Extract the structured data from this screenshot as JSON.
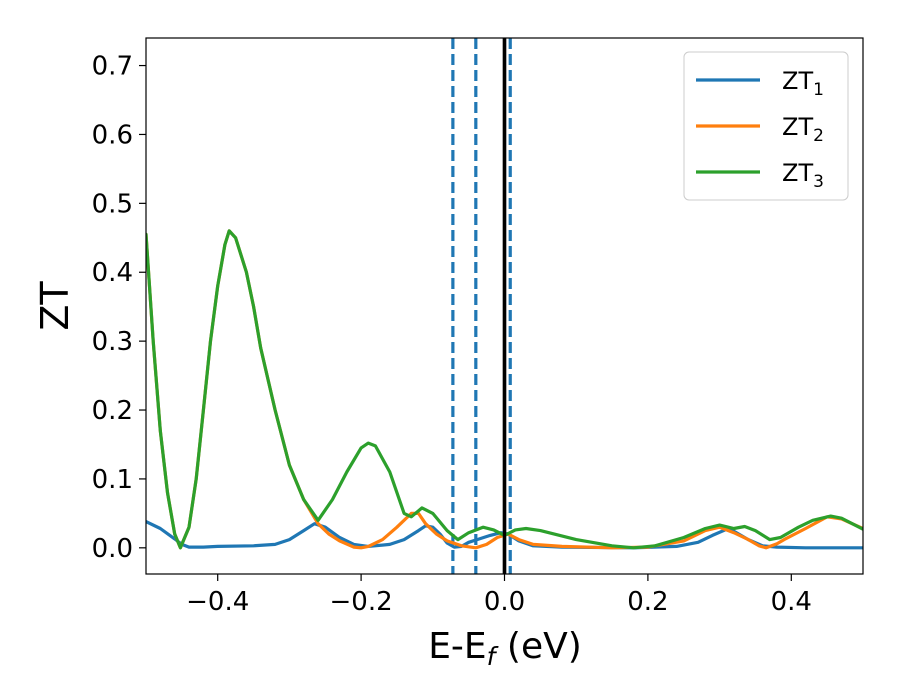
{
  "chart_data": {
    "type": "line",
    "xlabel_main": "E-E",
    "xlabel_sub": "f",
    "xlabel_unit": " (eV)",
    "ylabel": "ZT",
    "xlim": [
      -0.5,
      0.5
    ],
    "ylim": [
      -0.038,
      0.74
    ],
    "xticks": [
      -0.4,
      -0.2,
      0.0,
      0.2,
      0.4
    ],
    "xtick_labels": [
      "−0.4",
      "−0.2",
      "0.0",
      "0.2",
      "0.4"
    ],
    "yticks": [
      0.0,
      0.1,
      0.2,
      0.3,
      0.4,
      0.5,
      0.6,
      0.7
    ],
    "ytick_labels": [
      "0.0",
      "0.1",
      "0.2",
      "0.3",
      "0.4",
      "0.5",
      "0.6",
      "0.7"
    ],
    "legend_position": "top-right",
    "vlines": [
      {
        "x": -0.072,
        "style": "dashed",
        "color": "#1f77b4"
      },
      {
        "x": -0.04,
        "style": "dashed",
        "color": "#1f77b4"
      },
      {
        "x": 0.008,
        "style": "dashed",
        "color": "#1f77b4"
      },
      {
        "x": 0.0,
        "style": "solid",
        "color": "#000000"
      }
    ],
    "series": [
      {
        "name": "ZT",
        "sub": "1",
        "color": "#1f77b4",
        "points": [
          [
            -0.5,
            0.038
          ],
          [
            -0.48,
            0.028
          ],
          [
            -0.46,
            0.013
          ],
          [
            -0.45,
            0.005
          ],
          [
            -0.44,
            0.001
          ],
          [
            -0.42,
            0.001
          ],
          [
            -0.4,
            0.002
          ],
          [
            -0.35,
            0.003
          ],
          [
            -0.32,
            0.005
          ],
          [
            -0.3,
            0.012
          ],
          [
            -0.28,
            0.025
          ],
          [
            -0.265,
            0.035
          ],
          [
            -0.25,
            0.03
          ],
          [
            -0.23,
            0.015
          ],
          [
            -0.21,
            0.005
          ],
          [
            -0.19,
            0.002
          ],
          [
            -0.16,
            0.005
          ],
          [
            -0.14,
            0.012
          ],
          [
            -0.12,
            0.025
          ],
          [
            -0.11,
            0.032
          ],
          [
            -0.1,
            0.03
          ],
          [
            -0.09,
            0.02
          ],
          [
            -0.08,
            0.007
          ],
          [
            -0.07,
            0.001
          ],
          [
            -0.06,
            0.002
          ],
          [
            -0.05,
            0.008
          ],
          [
            -0.035,
            0.013
          ],
          [
            -0.02,
            0.018
          ],
          [
            -0.005,
            0.022
          ],
          [
            0.005,
            0.02
          ],
          [
            0.02,
            0.01
          ],
          [
            0.04,
            0.003
          ],
          [
            0.08,
            0.001
          ],
          [
            0.18,
            0.0
          ],
          [
            0.24,
            0.002
          ],
          [
            0.27,
            0.008
          ],
          [
            0.29,
            0.018
          ],
          [
            0.31,
            0.027
          ],
          [
            0.32,
            0.024
          ],
          [
            0.34,
            0.012
          ],
          [
            0.36,
            0.003
          ],
          [
            0.38,
            0.001
          ],
          [
            0.42,
            0.0
          ],
          [
            0.5,
            0.0
          ]
        ]
      },
      {
        "name": "ZT",
        "sub": "2",
        "color": "#ff7f0e",
        "points": [
          [
            -0.5,
            0.455
          ],
          [
            -0.49,
            0.3
          ],
          [
            -0.48,
            0.17
          ],
          [
            -0.47,
            0.08
          ],
          [
            -0.46,
            0.02
          ],
          [
            -0.452,
            0.0
          ],
          [
            -0.44,
            0.03
          ],
          [
            -0.43,
            0.1
          ],
          [
            -0.42,
            0.2
          ],
          [
            -0.41,
            0.3
          ],
          [
            -0.4,
            0.38
          ],
          [
            -0.39,
            0.44
          ],
          [
            -0.384,
            0.46
          ],
          [
            -0.375,
            0.45
          ],
          [
            -0.36,
            0.4
          ],
          [
            -0.35,
            0.35
          ],
          [
            -0.34,
            0.29
          ],
          [
            -0.32,
            0.2
          ],
          [
            -0.3,
            0.12
          ],
          [
            -0.28,
            0.07
          ],
          [
            -0.26,
            0.035
          ],
          [
            -0.245,
            0.02
          ],
          [
            -0.23,
            0.01
          ],
          [
            -0.21,
            0.001
          ],
          [
            -0.2,
            0.0
          ],
          [
            -0.19,
            0.002
          ],
          [
            -0.17,
            0.012
          ],
          [
            -0.15,
            0.03
          ],
          [
            -0.13,
            0.05
          ],
          [
            -0.12,
            0.05
          ],
          [
            -0.11,
            0.035
          ],
          [
            -0.095,
            0.02
          ],
          [
            -0.08,
            0.01
          ],
          [
            -0.06,
            0.003
          ],
          [
            -0.04,
            0.0
          ],
          [
            -0.025,
            0.005
          ],
          [
            -0.01,
            0.015
          ],
          [
            0.005,
            0.02
          ],
          [
            0.02,
            0.012
          ],
          [
            0.04,
            0.005
          ],
          [
            0.08,
            0.002
          ],
          [
            0.15,
            0.0
          ],
          [
            0.2,
            0.001
          ],
          [
            0.25,
            0.01
          ],
          [
            0.28,
            0.025
          ],
          [
            0.3,
            0.03
          ],
          [
            0.32,
            0.022
          ],
          [
            0.34,
            0.012
          ],
          [
            0.355,
            0.003
          ],
          [
            0.365,
            0.0
          ],
          [
            0.38,
            0.006
          ],
          [
            0.39,
            0.012
          ],
          [
            0.42,
            0.028
          ],
          [
            0.45,
            0.045
          ],
          [
            0.47,
            0.042
          ],
          [
            0.5,
            0.028
          ]
        ]
      },
      {
        "name": "ZT",
        "sub": "3",
        "color": "#2ca02c",
        "points": [
          [
            -0.5,
            0.455
          ],
          [
            -0.49,
            0.3
          ],
          [
            -0.48,
            0.17
          ],
          [
            -0.47,
            0.08
          ],
          [
            -0.46,
            0.02
          ],
          [
            -0.452,
            0.0
          ],
          [
            -0.44,
            0.03
          ],
          [
            -0.43,
            0.1
          ],
          [
            -0.42,
            0.2
          ],
          [
            -0.41,
            0.3
          ],
          [
            -0.4,
            0.38
          ],
          [
            -0.39,
            0.44
          ],
          [
            -0.384,
            0.46
          ],
          [
            -0.375,
            0.45
          ],
          [
            -0.36,
            0.4
          ],
          [
            -0.35,
            0.35
          ],
          [
            -0.34,
            0.29
          ],
          [
            -0.32,
            0.2
          ],
          [
            -0.3,
            0.12
          ],
          [
            -0.28,
            0.07
          ],
          [
            -0.26,
            0.04
          ],
          [
            -0.24,
            0.07
          ],
          [
            -0.22,
            0.11
          ],
          [
            -0.2,
            0.145
          ],
          [
            -0.19,
            0.152
          ],
          [
            -0.18,
            0.148
          ],
          [
            -0.16,
            0.11
          ],
          [
            -0.14,
            0.05
          ],
          [
            -0.13,
            0.045
          ],
          [
            -0.115,
            0.058
          ],
          [
            -0.1,
            0.05
          ],
          [
            -0.08,
            0.025
          ],
          [
            -0.065,
            0.012
          ],
          [
            -0.05,
            0.022
          ],
          [
            -0.03,
            0.03
          ],
          [
            -0.015,
            0.026
          ],
          [
            0.0,
            0.018
          ],
          [
            0.015,
            0.026
          ],
          [
            0.03,
            0.028
          ],
          [
            0.05,
            0.025
          ],
          [
            0.1,
            0.012
          ],
          [
            0.15,
            0.003
          ],
          [
            0.18,
            0.0
          ],
          [
            0.21,
            0.003
          ],
          [
            0.25,
            0.015
          ],
          [
            0.28,
            0.028
          ],
          [
            0.3,
            0.033
          ],
          [
            0.32,
            0.028
          ],
          [
            0.335,
            0.031
          ],
          [
            0.35,
            0.025
          ],
          [
            0.37,
            0.012
          ],
          [
            0.385,
            0.015
          ],
          [
            0.41,
            0.03
          ],
          [
            0.43,
            0.04
          ],
          [
            0.455,
            0.046
          ],
          [
            0.47,
            0.043
          ],
          [
            0.5,
            0.027
          ]
        ]
      }
    ]
  }
}
